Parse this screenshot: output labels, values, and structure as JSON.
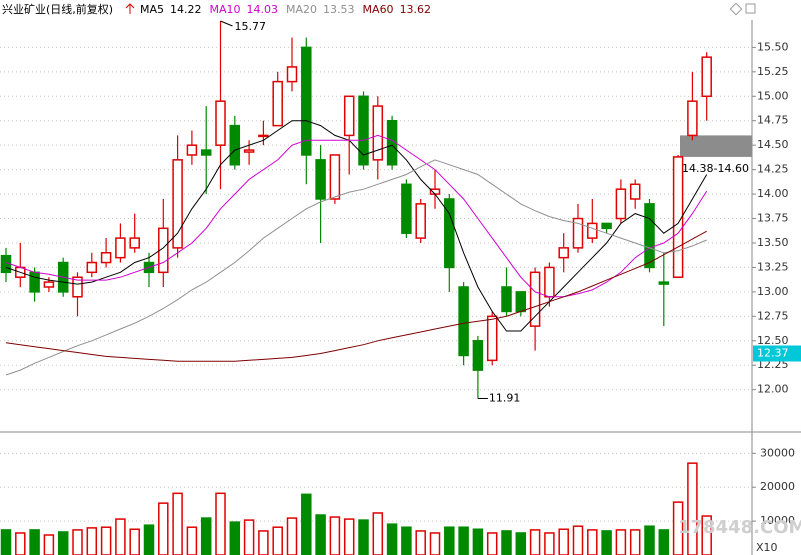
{
  "chart_data": {
    "type": "candlestick",
    "title": "兴业矿业(日线,前复权)",
    "open": [
      13.37,
      13.15,
      13.2,
      13.05,
      13.3,
      12.95,
      13.2,
      13.3,
      13.35,
      13.45,
      13.3,
      13.2,
      13.45,
      14.4,
      14.45,
      14.5,
      14.7,
      14.43,
      14.6,
      14.7,
      15.15,
      15.5,
      14.35,
      13.95,
      14.6,
      15.0,
      14.35,
      14.75,
      14.1,
      13.55,
      14.0,
      13.95,
      13.05,
      12.5,
      12.3,
      13.05,
      13.0,
      12.65,
      12.95,
      13.35,
      13.45,
      13.55,
      13.7,
      13.75,
      13.95,
      13.9,
      13.1,
      13.15,
      14.6,
      15.0
    ],
    "high": [
      13.45,
      13.5,
      13.25,
      13.15,
      13.35,
      13.2,
      13.4,
      13.55,
      13.7,
      13.8,
      13.4,
      13.95,
      14.6,
      14.65,
      14.9,
      15.77,
      14.8,
      14.55,
      14.75,
      15.25,
      15.6,
      15.6,
      14.5,
      14.4,
      15.0,
      15.05,
      15.0,
      14.8,
      14.15,
      13.95,
      14.25,
      14.0,
      13.1,
      12.55,
      12.8,
      13.25,
      13.0,
      13.25,
      13.3,
      13.6,
      13.9,
      13.95,
      13.7,
      14.15,
      14.15,
      13.95,
      13.4,
      14.4,
      15.25,
      15.45
    ],
    "low": [
      13.1,
      13.05,
      12.9,
      13.0,
      12.95,
      12.75,
      13.15,
      13.25,
      13.3,
      13.4,
      13.05,
      13.05,
      13.35,
      14.3,
      14.0,
      14.05,
      14.25,
      14.3,
      14.5,
      14.7,
      15.05,
      14.1,
      13.5,
      13.9,
      14.2,
      14.25,
      14.15,
      14.25,
      13.55,
      13.5,
      13.85,
      13.0,
      12.25,
      11.91,
      12.25,
      12.75,
      12.75,
      12.4,
      12.85,
      13.2,
      13.4,
      13.5,
      13.6,
      13.7,
      13.85,
      13.2,
      12.65,
      13.15,
      14.55,
      14.75
    ],
    "close": [
      13.2,
      13.25,
      13.0,
      13.1,
      13.0,
      13.15,
      13.3,
      13.4,
      13.55,
      13.55,
      13.2,
      13.65,
      14.35,
      14.5,
      14.4,
      14.95,
      14.3,
      14.45,
      14.6,
      15.15,
      15.3,
      14.4,
      13.95,
      14.4,
      15.0,
      14.3,
      14.9,
      14.3,
      13.6,
      13.9,
      14.05,
      13.25,
      12.35,
      12.2,
      12.75,
      12.8,
      12.8,
      13.2,
      13.25,
      13.45,
      13.75,
      13.7,
      13.65,
      14.05,
      14.1,
      13.25,
      13.08,
      14.38,
      14.95,
      15.4
    ],
    "up_color": "#e00000",
    "down_color": "#008a00",
    "ma_series": [
      {
        "name": "MA5",
        "legend_value": 14.22,
        "color": "#000000",
        "values": [
          13.25,
          13.2,
          13.15,
          13.12,
          13.1,
          13.08,
          13.1,
          13.15,
          13.2,
          13.3,
          13.35,
          13.45,
          13.6,
          13.85,
          14.05,
          14.3,
          14.45,
          14.5,
          14.55,
          14.65,
          14.75,
          14.75,
          14.7,
          14.6,
          14.55,
          14.4,
          14.45,
          14.5,
          14.35,
          14.15,
          14.0,
          13.8,
          13.4,
          13.05,
          12.8,
          12.6,
          12.6,
          12.75,
          12.9,
          13.05,
          13.2,
          13.35,
          13.5,
          13.7,
          13.8,
          13.75,
          13.6,
          13.7,
          13.95,
          14.2
        ]
      },
      {
        "name": "MA10",
        "legend_value": 14.03,
        "color": "#d000d0",
        "values": [
          13.3,
          13.25,
          13.2,
          13.18,
          13.15,
          13.12,
          13.12,
          13.12,
          13.15,
          13.2,
          13.25,
          13.3,
          13.4,
          13.5,
          13.65,
          13.85,
          14.0,
          14.15,
          14.25,
          14.35,
          14.5,
          14.55,
          14.55,
          14.55,
          14.55,
          14.55,
          14.6,
          14.55,
          14.45,
          14.35,
          14.25,
          14.1,
          13.95,
          13.75,
          13.55,
          13.35,
          13.15,
          13.0,
          12.95,
          12.95,
          12.98,
          13.02,
          13.1,
          13.2,
          13.35,
          13.45,
          13.5,
          13.6,
          13.8,
          14.03
        ]
      },
      {
        "name": "MA20",
        "legend_value": 13.53,
        "color": "#909090",
        "values": [
          12.15,
          12.2,
          12.27,
          12.33,
          12.39,
          12.45,
          12.5,
          12.56,
          12.62,
          12.68,
          12.75,
          12.83,
          12.92,
          13.02,
          13.1,
          13.2,
          13.3,
          13.42,
          13.55,
          13.65,
          13.75,
          13.85,
          13.92,
          13.97,
          14.02,
          14.05,
          14.1,
          14.15,
          14.2,
          14.28,
          14.35,
          14.3,
          14.25,
          14.2,
          14.1,
          14.0,
          13.9,
          13.83,
          13.77,
          13.73,
          13.7,
          13.65,
          13.6,
          13.55,
          13.5,
          13.45,
          13.4,
          13.42,
          13.47,
          13.53
        ]
      },
      {
        "name": "MA60",
        "legend_value": 13.62,
        "color": "#800000",
        "values": [
          12.48,
          12.46,
          12.44,
          12.42,
          12.4,
          12.38,
          12.36,
          12.34,
          12.33,
          12.32,
          12.31,
          12.3,
          12.29,
          12.29,
          12.29,
          12.29,
          12.29,
          12.3,
          12.31,
          12.32,
          12.33,
          12.35,
          12.37,
          12.4,
          12.43,
          12.46,
          12.5,
          12.53,
          12.56,
          12.59,
          12.62,
          12.65,
          12.68,
          12.7,
          12.72,
          12.75,
          12.8,
          12.85,
          12.9,
          12.95,
          13.0,
          13.06,
          13.12,
          13.18,
          13.24,
          13.3,
          13.38,
          13.46,
          13.54,
          13.62
        ]
      }
    ],
    "ylim": [
      11.69,
      15.78
    ],
    "yticks": [
      {
        "value": 12,
        "label": "12.00"
      },
      {
        "value": 12.25,
        "label": "12.25"
      },
      {
        "value": 12.5,
        "label": "12.50"
      },
      {
        "value": 12.75,
        "label": "12.75"
      },
      {
        "value": 13,
        "label": "13.00"
      },
      {
        "value": 13.25,
        "label": "13.25"
      },
      {
        "value": 13.5,
        "label": "13.50"
      },
      {
        "value": 13.75,
        "label": "13.75"
      },
      {
        "value": 14,
        "label": "14.00"
      },
      {
        "value": 14.25,
        "label": "14.25"
      },
      {
        "value": 14.5,
        "label": "14.50"
      },
      {
        "value": 14.75,
        "label": "14.75"
      },
      {
        "value": 15,
        "label": "15.00"
      },
      {
        "value": 15.25,
        "label": "15.25"
      },
      {
        "value": 15.5,
        "label": "15.50"
      }
    ],
    "high_label": {
      "index": 15,
      "value": 15.77
    },
    "low_label": {
      "index": 33,
      "value": 11.91
    },
    "range_box": {
      "low": 14.38,
      "high": 14.6,
      "label": "14.38-14.60"
    },
    "price_marker": 12.37,
    "volume": [
      7400,
      6500,
      7400,
      5900,
      6800,
      7400,
      8000,
      8200,
      10600,
      7600,
      8800,
      15300,
      18200,
      8200,
      10900,
      18200,
      9700,
      10300,
      7100,
      8200,
      10900,
      17900,
      11800,
      11200,
      10600,
      10300,
      12400,
      9100,
      8200,
      7100,
      6500,
      8200,
      8200,
      7600,
      6500,
      7100,
      6500,
      7400,
      6500,
      7600,
      8500,
      7400,
      7100,
      7400,
      7400,
      8500,
      7400,
      15600,
      27100,
      11500
    ],
    "volume_ylim": [
      0,
      36000
    ],
    "volume_ticks": [
      10000,
      20000,
      30000
    ],
    "volume_unit": "X10",
    "watermark": "178448.COM"
  }
}
